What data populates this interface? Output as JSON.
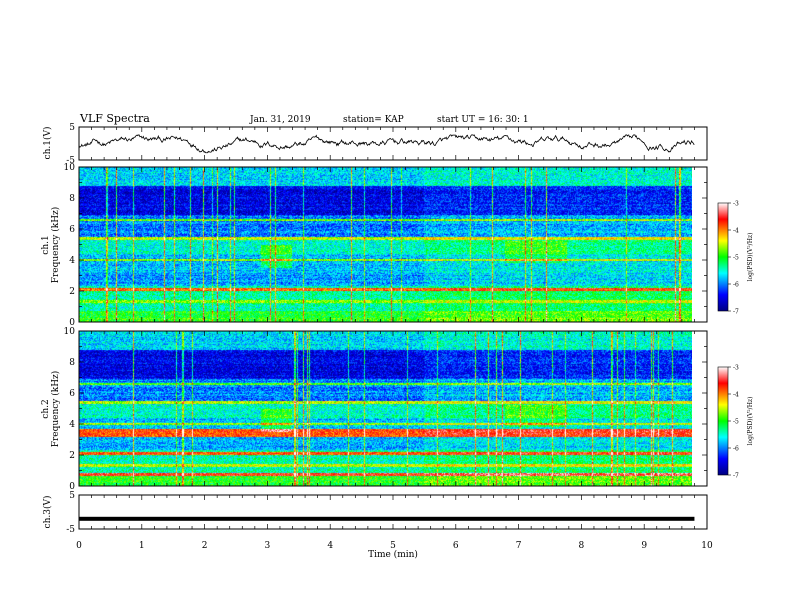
{
  "header": {
    "title": "VLF Spectra",
    "date": "Jan. 31, 2019",
    "station": "station= KAP",
    "start": "start  UT =  16: 30: 1"
  },
  "chart_data": [
    {
      "type": "line",
      "panel": "ch1-voltage",
      "ylabel": "ch.1(V)",
      "yticks": [
        "5",
        "-5"
      ],
      "ylim": [
        -5,
        5
      ],
      "xlim": [
        0,
        10
      ],
      "note_series": "noisy waveform fluctuating roughly between -2.5 and 2.5 V over 0-9.8 min"
    },
    {
      "type": "heatmap",
      "panel": "ch1-spectrogram",
      "ylabel_line1": "ch.1",
      "ylabel_line2": "Frequency (kHz)",
      "yticks": [
        "0",
        "2",
        "4",
        "6",
        "8",
        "10"
      ],
      "ylim": [
        0,
        10
      ],
      "xlim": [
        0,
        10
      ],
      "data_extent_x": [
        0,
        9.8
      ],
      "colorbar": {
        "label": "log(PSD)(V²/Hz)",
        "ticks": [
          "-3",
          "-4",
          "-5",
          "-6",
          "-7"
        ],
        "range": [
          -7,
          -3
        ]
      }
    },
    {
      "type": "heatmap",
      "panel": "ch2-spectrogram",
      "ylabel_line1": "ch.2",
      "ylabel_line2": "Frequency (kHz)",
      "yticks": [
        "0",
        "2",
        "4",
        "6",
        "8",
        "10"
      ],
      "ylim": [
        0,
        10
      ],
      "xlim": [
        0,
        10
      ],
      "data_extent_x": [
        0,
        9.8
      ],
      "colorbar": {
        "label": "log(PSD)(V²/Hz)",
        "ticks": [
          "-3",
          "-4",
          "-5",
          "-6",
          "-7"
        ],
        "range": [
          -7,
          -3
        ]
      }
    },
    {
      "type": "line",
      "panel": "ch3-voltage",
      "ylabel": "ch.3(V)",
      "yticks": [
        "5",
        "-5"
      ],
      "ylim": [
        -5,
        5
      ],
      "xlim": [
        0,
        10
      ],
      "x": [
        0,
        9.8
      ],
      "y": [
        -2,
        -2
      ]
    }
  ],
  "xaxis": {
    "label": "Time (min)",
    "ticks": [
      "0",
      "1",
      "2",
      "3",
      "4",
      "5",
      "6",
      "7",
      "8",
      "9",
      "10"
    ]
  },
  "colors": {
    "colormap": [
      "#000080",
      "#0000ff",
      "#00ffff",
      "#00ff00",
      "#ffff00",
      "#ff0000",
      "#ffffff"
    ],
    "line": "#000000"
  }
}
